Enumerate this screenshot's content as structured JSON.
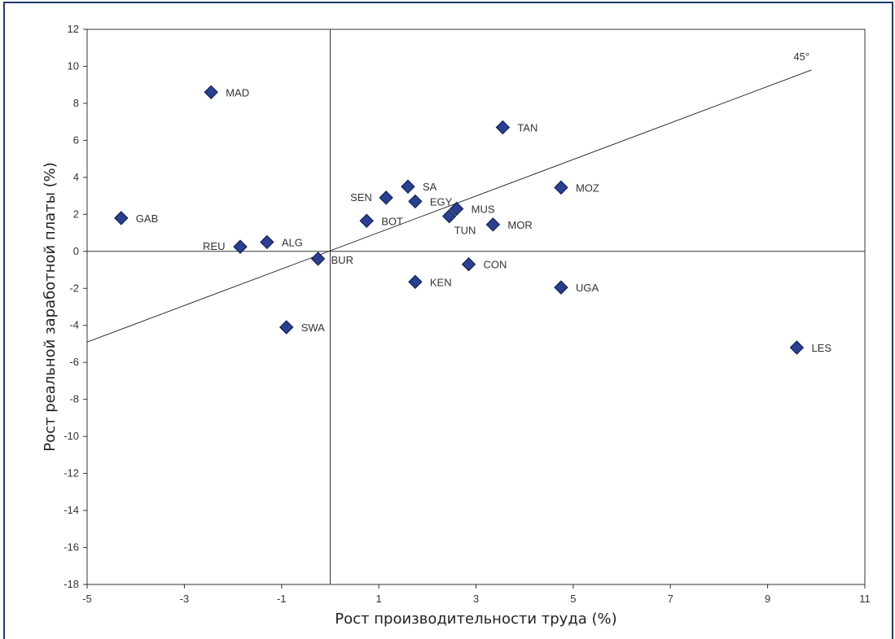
{
  "chart_data": {
    "type": "scatter",
    "title": "",
    "xlabel": "Рост производительности труда (%)",
    "ylabel": "Рост реальной заработной платы (%)",
    "xlim": [
      -5,
      11
    ],
    "ylim": [
      -18,
      12
    ],
    "x_ticks": [
      "-5",
      "-3",
      "-1",
      "1",
      "3",
      "5",
      "7",
      "9",
      "11"
    ],
    "y_ticks": [
      "12",
      "10",
      "8",
      "6",
      "4",
      "2",
      "0",
      "-2",
      "-4",
      "-6",
      "-8",
      "-10",
      "-12",
      "-14",
      "-16",
      "-18"
    ],
    "reference_line": {
      "label": "45°",
      "x": [
        -5,
        9.9
      ],
      "y": [
        -4.9,
        9.8
      ]
    },
    "marker_color": "#2a3f8f",
    "points": [
      {
        "label": "MAD",
        "x": -2.45,
        "y": 8.6
      },
      {
        "label": "TAN",
        "x": 3.55,
        "y": 6.7
      },
      {
        "label": "GAB",
        "x": -4.3,
        "y": 1.8
      },
      {
        "label": "SA",
        "x": 1.6,
        "y": 3.5
      },
      {
        "label": "SEN",
        "x": 1.15,
        "y": 2.9
      },
      {
        "label": "EGY",
        "x": 1.75,
        "y": 2.7
      },
      {
        "label": "MUS",
        "x": 2.6,
        "y": 2.3
      },
      {
        "label": "TUN",
        "x": 2.45,
        "y": 1.9
      },
      {
        "label": "MOZ",
        "x": 4.75,
        "y": 3.45
      },
      {
        "label": "BOT",
        "x": 0.75,
        "y": 1.65
      },
      {
        "label": "MOR",
        "x": 3.35,
        "y": 1.45
      },
      {
        "label": "REU",
        "x": -1.85,
        "y": 0.25
      },
      {
        "label": "ALG",
        "x": -1.3,
        "y": 0.5
      },
      {
        "label": "BUR",
        "x": -0.25,
        "y": -0.4
      },
      {
        "label": "CON",
        "x": 2.85,
        "y": -0.7
      },
      {
        "label": "KEN",
        "x": 1.75,
        "y": -1.65
      },
      {
        "label": "UGA",
        "x": 4.75,
        "y": -1.95
      },
      {
        "label": "SWA",
        "x": -0.9,
        "y": -4.1
      },
      {
        "label": "LES",
        "x": 9.6,
        "y": -5.2
      }
    ]
  }
}
